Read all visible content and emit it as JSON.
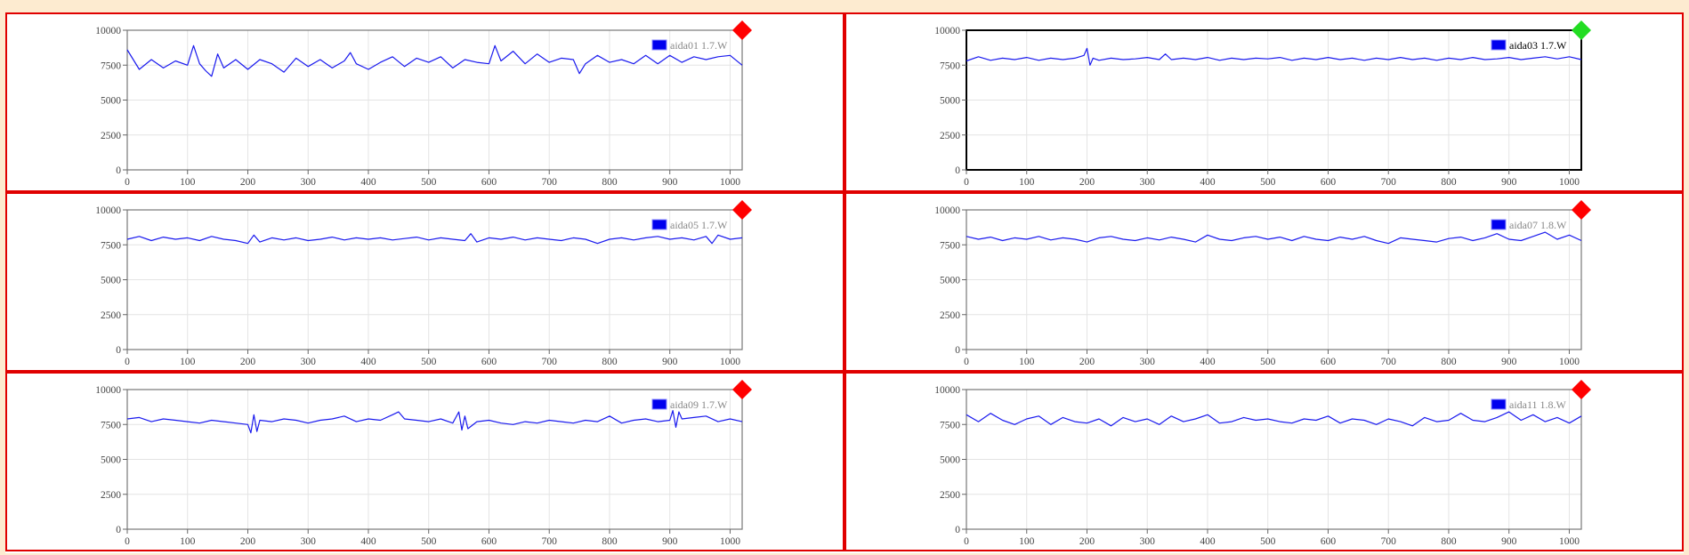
{
  "colors": {
    "background": "#fdebd0",
    "panel_border": "#e00000",
    "series_line": "#1a1aee",
    "legend_swatch": "#0000ee",
    "status_alarm": "#ff0000",
    "status_ok": "#22dd22",
    "legend_text_default": "#888888",
    "legend_text_selected": "#000000"
  },
  "chart_data": [
    {
      "type": "line",
      "id": "aida01",
      "legend": "aida01 1.7.W",
      "status": "alarm",
      "selected": false,
      "xlim": [
        0,
        1020
      ],
      "ylim": [
        0,
        10000
      ],
      "xticks": [
        "0",
        "100",
        "200",
        "300",
        "400",
        "500",
        "600",
        "700",
        "800",
        "900",
        "1000"
      ],
      "yticks": [
        "0",
        "2500",
        "5000",
        "7500",
        "10000"
      ],
      "grid": true,
      "legend_position": "top-right",
      "series": [
        {
          "name": "aida01 1.7.W",
          "x": [
            0,
            20,
            40,
            60,
            80,
            100,
            110,
            120,
            130,
            140,
            150,
            160,
            180,
            200,
            220,
            240,
            260,
            280,
            300,
            320,
            340,
            360,
            370,
            380,
            400,
            420,
            440,
            460,
            480,
            500,
            520,
            540,
            560,
            580,
            600,
            610,
            620,
            640,
            660,
            680,
            700,
            720,
            740,
            750,
            760,
            780,
            800,
            820,
            840,
            860,
            880,
            900,
            920,
            940,
            960,
            980,
            1000,
            1020
          ],
          "y": [
            8600,
            7200,
            7900,
            7300,
            7800,
            7500,
            8900,
            7600,
            7100,
            6700,
            8300,
            7300,
            7900,
            7200,
            7900,
            7600,
            7000,
            8000,
            7400,
            7900,
            7300,
            7800,
            8400,
            7600,
            7200,
            7700,
            8100,
            7400,
            8000,
            7700,
            8100,
            7300,
            7900,
            7700,
            7600,
            8900,
            7800,
            8500,
            7600,
            8300,
            7700,
            8000,
            7900,
            6900,
            7600,
            8200,
            7700,
            7900,
            7600,
            8200,
            7600,
            8200,
            7700,
            8100,
            7900,
            8100,
            8200,
            7500
          ]
        }
      ]
    },
    {
      "type": "line",
      "id": "aida03",
      "legend": "aida03 1.7.W",
      "status": "ok",
      "selected": true,
      "xlim": [
        0,
        1020
      ],
      "ylim": [
        0,
        10000
      ],
      "xticks": [
        "0",
        "100",
        "200",
        "300",
        "400",
        "500",
        "600",
        "700",
        "800",
        "900",
        "1000"
      ],
      "yticks": [
        "0",
        "2500",
        "5000",
        "7500",
        "10000"
      ],
      "grid": true,
      "legend_position": "top-right",
      "series": [
        {
          "name": "aida03 1.7.W",
          "x": [
            0,
            20,
            40,
            60,
            80,
            100,
            120,
            140,
            160,
            180,
            195,
            200,
            205,
            210,
            220,
            240,
            260,
            280,
            300,
            320,
            330,
            340,
            360,
            380,
            400,
            420,
            440,
            460,
            480,
            500,
            520,
            540,
            560,
            580,
            600,
            620,
            640,
            660,
            680,
            700,
            720,
            740,
            760,
            780,
            800,
            820,
            840,
            860,
            880,
            900,
            920,
            940,
            960,
            980,
            1000,
            1020
          ],
          "y": [
            7800,
            8100,
            7850,
            8000,
            7900,
            8050,
            7850,
            8000,
            7900,
            8000,
            8200,
            8700,
            7500,
            8000,
            7850,
            8000,
            7900,
            7950,
            8050,
            7900,
            8300,
            7900,
            8000,
            7900,
            8050,
            7850,
            8000,
            7900,
            8000,
            7950,
            8050,
            7850,
            8000,
            7900,
            8050,
            7900,
            8000,
            7850,
            8000,
            7900,
            8050,
            7900,
            8000,
            7850,
            8000,
            7900,
            8050,
            7900,
            7950,
            8050,
            7900,
            8000,
            8100,
            7950,
            8100,
            7900
          ]
        }
      ]
    },
    {
      "type": "line",
      "id": "aida05",
      "legend": "aida05 1.7.W",
      "status": "alarm",
      "selected": false,
      "xlim": [
        0,
        1020
      ],
      "ylim": [
        0,
        10000
      ],
      "xticks": [
        "0",
        "100",
        "200",
        "300",
        "400",
        "500",
        "600",
        "700",
        "800",
        "900",
        "1000"
      ],
      "yticks": [
        "0",
        "2500",
        "5000",
        "7500",
        "10000"
      ],
      "grid": true,
      "legend_position": "top-right",
      "series": [
        {
          "name": "aida05 1.7.W",
          "x": [
            0,
            20,
            40,
            60,
            80,
            100,
            120,
            140,
            160,
            180,
            200,
            210,
            220,
            240,
            260,
            280,
            300,
            320,
            340,
            360,
            380,
            400,
            420,
            440,
            460,
            480,
            500,
            520,
            540,
            560,
            570,
            580,
            600,
            620,
            640,
            660,
            680,
            700,
            720,
            740,
            760,
            780,
            800,
            820,
            840,
            860,
            880,
            900,
            920,
            940,
            960,
            970,
            980,
            1000,
            1020
          ],
          "y": [
            7900,
            8100,
            7800,
            8050,
            7900,
            8000,
            7800,
            8100,
            7900,
            7800,
            7600,
            8200,
            7700,
            8000,
            7850,
            8000,
            7800,
            7900,
            8050,
            7850,
            8000,
            7900,
            8000,
            7850,
            7950,
            8050,
            7850,
            8000,
            7900,
            7800,
            8300,
            7700,
            8000,
            7900,
            8050,
            7850,
            8000,
            7900,
            7800,
            8000,
            7900,
            7600,
            7900,
            8000,
            7850,
            8000,
            8100,
            7900,
            8000,
            7850,
            8100,
            7600,
            8200,
            7900,
            8000
          ]
        }
      ]
    },
    {
      "type": "line",
      "id": "aida07",
      "legend": "aida07 1.8.W",
      "status": "alarm",
      "selected": false,
      "xlim": [
        0,
        1020
      ],
      "ylim": [
        0,
        10000
      ],
      "xticks": [
        "0",
        "100",
        "200",
        "300",
        "400",
        "500",
        "600",
        "700",
        "800",
        "900",
        "1000"
      ],
      "yticks": [
        "0",
        "2500",
        "5000",
        "7500",
        "10000"
      ],
      "grid": true,
      "legend_position": "top-right",
      "series": [
        {
          "name": "aida07 1.8.W",
          "x": [
            0,
            20,
            40,
            60,
            80,
            100,
            120,
            140,
            160,
            180,
            200,
            220,
            240,
            260,
            280,
            300,
            320,
            340,
            360,
            380,
            400,
            420,
            440,
            460,
            480,
            500,
            520,
            540,
            560,
            580,
            600,
            620,
            640,
            660,
            680,
            700,
            720,
            740,
            760,
            780,
            800,
            820,
            840,
            860,
            880,
            900,
            920,
            940,
            960,
            980,
            1000,
            1020
          ],
          "y": [
            8100,
            7900,
            8050,
            7800,
            8000,
            7900,
            8100,
            7850,
            8000,
            7900,
            7700,
            8000,
            8100,
            7900,
            7800,
            8000,
            7850,
            8050,
            7900,
            7700,
            8200,
            7900,
            7800,
            8000,
            8100,
            7900,
            8050,
            7800,
            8100,
            7900,
            7800,
            8050,
            7900,
            8100,
            7800,
            7600,
            8000,
            7900,
            7800,
            7700,
            7950,
            8050,
            7800,
            8000,
            8300,
            7900,
            7800,
            8100,
            8400,
            7900,
            8200,
            7800
          ]
        }
      ]
    },
    {
      "type": "line",
      "id": "aida09",
      "legend": "aida09 1.7.W",
      "status": "alarm",
      "selected": false,
      "xlim": [
        0,
        1020
      ],
      "ylim": [
        0,
        10000
      ],
      "xticks": [
        "0",
        "100",
        "200",
        "300",
        "400",
        "500",
        "600",
        "700",
        "800",
        "900",
        "1000"
      ],
      "yticks": [
        "0",
        "2500",
        "5000",
        "7500",
        "10000"
      ],
      "grid": true,
      "legend_position": "top-right",
      "series": [
        {
          "name": "aida09 1.7.W",
          "x": [
            0,
            20,
            40,
            60,
            80,
            100,
            120,
            140,
            160,
            180,
            200,
            205,
            210,
            215,
            220,
            240,
            260,
            280,
            300,
            320,
            340,
            360,
            380,
            400,
            420,
            440,
            450,
            460,
            480,
            500,
            520,
            540,
            550,
            555,
            560,
            565,
            580,
            600,
            620,
            640,
            660,
            680,
            700,
            720,
            740,
            760,
            780,
            800,
            820,
            840,
            860,
            880,
            900,
            905,
            910,
            915,
            920,
            940,
            960,
            980,
            1000,
            1020
          ],
          "y": [
            7900,
            8000,
            7700,
            7900,
            7800,
            7700,
            7600,
            7800,
            7700,
            7600,
            7500,
            6900,
            8200,
            7000,
            7800,
            7700,
            7900,
            7800,
            7600,
            7800,
            7900,
            8100,
            7700,
            7900,
            7800,
            8200,
            8400,
            7900,
            7800,
            7700,
            7900,
            7600,
            8400,
            7100,
            8100,
            7200,
            7700,
            7800,
            7600,
            7500,
            7700,
            7600,
            7800,
            7700,
            7600,
            7800,
            7700,
            8100,
            7600,
            7800,
            7900,
            7700,
            7800,
            8500,
            7300,
            8400,
            7900,
            8000,
            8100,
            7700,
            7900,
            7700
          ]
        }
      ]
    },
    {
      "type": "line",
      "id": "aida11",
      "legend": "aida11 1.8.W",
      "status": "alarm",
      "selected": false,
      "xlim": [
        0,
        1020
      ],
      "ylim": [
        0,
        10000
      ],
      "xticks": [
        "0",
        "100",
        "200",
        "300",
        "400",
        "500",
        "600",
        "700",
        "800",
        "900",
        "1000"
      ],
      "yticks": [
        "0",
        "2500",
        "5000",
        "7500",
        "10000"
      ],
      "grid": true,
      "legend_position": "top-right",
      "series": [
        {
          "name": "aida11 1.8.W",
          "x": [
            0,
            20,
            40,
            60,
            80,
            100,
            120,
            140,
            160,
            180,
            200,
            220,
            240,
            260,
            280,
            300,
            320,
            340,
            360,
            380,
            400,
            420,
            440,
            460,
            480,
            500,
            520,
            540,
            560,
            580,
            600,
            620,
            640,
            660,
            680,
            700,
            720,
            740,
            760,
            780,
            800,
            820,
            840,
            860,
            880,
            900,
            920,
            940,
            960,
            980,
            1000,
            1020
          ],
          "y": [
            8200,
            7700,
            8300,
            7800,
            7500,
            7900,
            8100,
            7500,
            8000,
            7700,
            7600,
            7900,
            7400,
            8000,
            7700,
            7900,
            7500,
            8100,
            7700,
            7900,
            8200,
            7600,
            7700,
            8000,
            7800,
            7900,
            7700,
            7600,
            7900,
            7800,
            8100,
            7600,
            7900,
            7800,
            7500,
            7900,
            7700,
            7400,
            8000,
            7700,
            7800,
            8300,
            7800,
            7700,
            8000,
            8400,
            7800,
            8200,
            7700,
            8000,
            7600,
            8100
          ]
        }
      ]
    }
  ]
}
